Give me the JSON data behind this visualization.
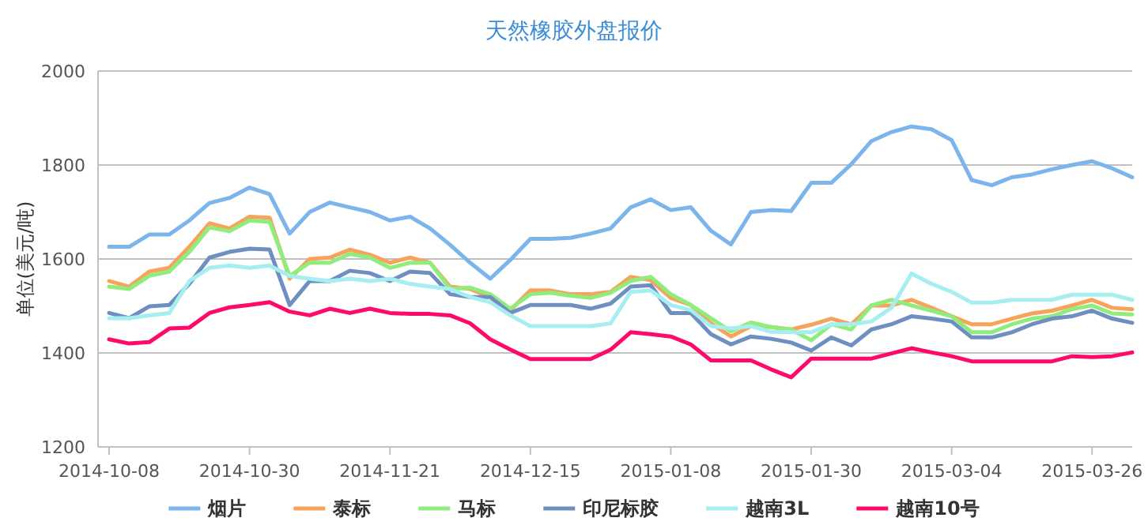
{
  "chart_data": {
    "type": "line",
    "title": "天然橡胶外盘报价",
    "ylabel": "单位(美元/吨)",
    "categories": [
      "2014-10-08",
      null,
      null,
      null,
      null,
      null,
      null,
      "2014-10-30",
      null,
      null,
      null,
      null,
      null,
      null,
      "2014-11-21",
      null,
      null,
      null,
      null,
      null,
      null,
      "2014-12-15",
      null,
      null,
      null,
      null,
      null,
      null,
      "2015-01-08",
      null,
      null,
      null,
      null,
      null,
      null,
      "2015-01-30",
      null,
      null,
      null,
      null,
      null,
      null,
      "2015-03-04",
      null,
      null,
      null,
      null,
      null,
      null,
      "2015-03-26",
      null,
      null
    ],
    "ylim": [
      1200,
      2000
    ],
    "yticks": [
      1200,
      1400,
      1600,
      1800,
      2000
    ],
    "grid": "y",
    "legend": "bottom",
    "marker": "none",
    "line_style": "solid",
    "series": [
      {
        "name": "烟片",
        "color": "#7cb5ec",
        "values": [
          1626,
          1626,
          1652,
          1652,
          1682,
          1719,
          1730,
          1752,
          1738,
          1654,
          1700,
          1720,
          1710,
          1700,
          1682,
          1690,
          1665,
          1630,
          1592,
          1558,
          1598,
          1643,
          1643,
          1645,
          1654,
          1665,
          1710,
          1727,
          1704,
          1710,
          1660,
          1631,
          1700,
          1704,
          1702,
          1762,
          1762,
          1802,
          1851,
          1870,
          1882,
          1876,
          1853,
          1768,
          1757,
          1774,
          1780,
          1791,
          1800,
          1808,
          1793,
          1774
        ]
      },
      {
        "name": "泰标",
        "color": "#f7a35c",
        "values": [
          1553,
          1541,
          1573,
          1581,
          1626,
          1676,
          1665,
          1690,
          1688,
          1558,
          1600,
          1603,
          1620,
          1609,
          1592,
          1603,
          1592,
          1541,
          1536,
          1519,
          1491,
          1533,
          1533,
          1525,
          1525,
          1530,
          1562,
          1555,
          1517,
          1502,
          1463,
          1435,
          1457,
          1455,
          1450,
          1460,
          1473,
          1461,
          1501,
          1501,
          1513,
          1496,
          1478,
          1461,
          1461,
          1473,
          1484,
          1490,
          1501,
          1513,
          1496,
          1493
        ]
      },
      {
        "name": "马标",
        "color": "#90ed7d",
        "values": [
          1541,
          1536,
          1564,
          1573,
          1615,
          1667,
          1659,
          1682,
          1679,
          1564,
          1592,
          1592,
          1611,
          1603,
          1581,
          1592,
          1592,
          1536,
          1539,
          1525,
          1494,
          1525,
          1528,
          1522,
          1517,
          1528,
          1553,
          1562,
          1525,
          1502,
          1474,
          1446,
          1465,
          1455,
          1450,
          1427,
          1461,
          1450,
          1501,
          1513,
          1501,
          1490,
          1478,
          1444,
          1444,
          1461,
          1473,
          1478,
          1493,
          1501,
          1484,
          1482
        ]
      },
      {
        "name": "印尼标胶",
        "color": "#6f8fc0",
        "values": [
          1485,
          1474,
          1499,
          1502,
          1547,
          1603,
          1615,
          1622,
          1620,
          1502,
          1553,
          1553,
          1575,
          1570,
          1553,
          1573,
          1570,
          1525,
          1519,
          1519,
          1485,
          1502,
          1502,
          1502,
          1494,
          1505,
          1541,
          1544,
          1485,
          1485,
          1440,
          1418,
          1435,
          1430,
          1422,
          1405,
          1433,
          1416,
          1450,
          1461,
          1478,
          1473,
          1467,
          1433,
          1433,
          1444,
          1461,
          1473,
          1478,
          1490,
          1473,
          1464
        ]
      },
      {
        "name": "越南3L",
        "color": "#a6eef0",
        "values": [
          1474,
          1474,
          1480,
          1485,
          1553,
          1581,
          1586,
          1581,
          1586,
          1564,
          1558,
          1553,
          1558,
          1553,
          1558,
          1547,
          1541,
          1536,
          1519,
          1508,
          1480,
          1457,
          1457,
          1457,
          1457,
          1463,
          1530,
          1533,
          1502,
          1491,
          1457,
          1452,
          1457,
          1445,
          1444,
          1444,
          1461,
          1461,
          1467,
          1496,
          1569,
          1547,
          1530,
          1507,
          1507,
          1513,
          1513,
          1513,
          1524,
          1524,
          1524,
          1513
        ]
      },
      {
        "name": "越南10号",
        "color": "#ff0a6a",
        "values": [
          1429,
          1420,
          1423,
          1452,
          1454,
          1485,
          1497,
          1502,
          1508,
          1488,
          1480,
          1494,
          1485,
          1494,
          1485,
          1483,
          1483,
          1480,
          1463,
          1429,
          1407,
          1387,
          1387,
          1387,
          1387,
          1407,
          1444,
          1440,
          1435,
          1418,
          1384,
          1384,
          1384,
          1365,
          1348,
          1388,
          1388,
          1388,
          1388,
          1399,
          1410,
          1401,
          1393,
          1382,
          1382,
          1382,
          1382,
          1382,
          1393,
          1391,
          1393,
          1401
        ]
      }
    ]
  }
}
